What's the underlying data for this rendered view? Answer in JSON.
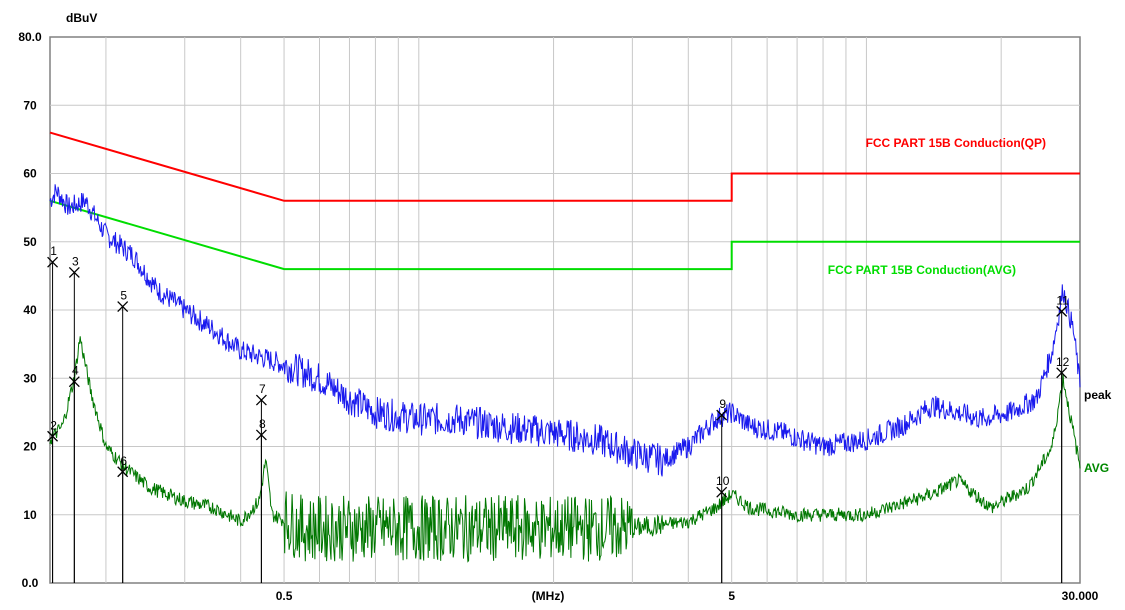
{
  "chart_data": {
    "type": "line",
    "title": "",
    "xlabel": "(MHz)",
    "ylabel": "dBuV",
    "x_scale": "log",
    "xlim": [
      0.15,
      30
    ],
    "ylim": [
      0,
      80
    ],
    "y_ticks": [
      {
        "value": 0,
        "label": "0.0"
      },
      {
        "value": 10,
        "label": "10"
      },
      {
        "value": 20,
        "label": "20"
      },
      {
        "value": 30,
        "label": "30"
      },
      {
        "value": 40,
        "label": "40"
      },
      {
        "value": 50,
        "label": "50"
      },
      {
        "value": 60,
        "label": "60"
      },
      {
        "value": 70,
        "label": "70"
      },
      {
        "value": 80,
        "label": "80.0"
      }
    ],
    "x_ticks": [
      {
        "value": 0.5,
        "label": "0.5"
      },
      {
        "value": 5,
        "label": "5"
      },
      {
        "value": 30,
        "label": "30.000"
      }
    ],
    "grid": true,
    "limit_lines": [
      {
        "name": "FCC PART 15B Conduction(QP)",
        "color": "#ff0000",
        "points": [
          [
            0.15,
            66
          ],
          [
            0.5,
            56
          ],
          [
            5,
            56
          ],
          [
            5,
            60
          ],
          [
            30,
            60
          ]
        ]
      },
      {
        "name": "FCC PART 15B Conduction(AVG)",
        "color": "#00dd00",
        "points": [
          [
            0.15,
            56
          ],
          [
            0.5,
            46
          ],
          [
            5,
            46
          ],
          [
            5,
            50
          ],
          [
            30,
            50
          ]
        ]
      }
    ],
    "series": [
      {
        "name": "peak",
        "color": "#1a1aee",
        "points": [
          [
            0.15,
            56
          ],
          [
            0.155,
            57.5
          ],
          [
            0.165,
            55
          ],
          [
            0.18,
            56
          ],
          [
            0.2,
            51
          ],
          [
            0.23,
            48
          ],
          [
            0.26,
            43
          ],
          [
            0.3,
            40
          ],
          [
            0.35,
            37
          ],
          [
            0.4,
            34
          ],
          [
            0.45,
            33
          ],
          [
            0.5,
            32
          ],
          [
            0.6,
            30
          ],
          [
            0.7,
            27
          ],
          [
            0.8,
            25
          ],
          [
            1.0,
            24
          ],
          [
            1.2,
            24
          ],
          [
            1.5,
            23
          ],
          [
            2.0,
            22
          ],
          [
            2.5,
            21
          ],
          [
            3.0,
            19
          ],
          [
            3.5,
            18
          ],
          [
            4.0,
            20
          ],
          [
            4.6,
            24
          ],
          [
            5.0,
            25
          ],
          [
            5.5,
            23
          ],
          [
            6.5,
            22
          ],
          [
            8.0,
            20
          ],
          [
            10,
            21
          ],
          [
            12,
            23
          ],
          [
            14,
            26
          ],
          [
            16,
            25
          ],
          [
            18,
            24
          ],
          [
            21,
            25
          ],
          [
            24,
            27
          ],
          [
            26,
            34
          ],
          [
            27.5,
            43
          ],
          [
            29,
            37
          ],
          [
            30,
            29
          ]
        ]
      },
      {
        "name": "AVG",
        "color": "#007700",
        "points": [
          [
            0.15,
            21
          ],
          [
            0.16,
            23
          ],
          [
            0.17,
            30
          ],
          [
            0.175,
            36
          ],
          [
            0.185,
            28
          ],
          [
            0.2,
            20
          ],
          [
            0.22,
            17
          ],
          [
            0.25,
            14
          ],
          [
            0.3,
            12
          ],
          [
            0.35,
            11
          ],
          [
            0.4,
            9
          ],
          [
            0.44,
            12
          ],
          [
            0.455,
            18
          ],
          [
            0.47,
            10
          ],
          [
            0.55,
            8
          ],
          [
            0.7,
            8
          ],
          [
            1.0,
            8
          ],
          [
            1.5,
            8
          ],
          [
            2.0,
            8
          ],
          [
            3.0,
            8
          ],
          [
            4.0,
            9
          ],
          [
            4.6,
            11
          ],
          [
            5.0,
            13
          ],
          [
            5.5,
            11
          ],
          [
            7.0,
            10
          ],
          [
            10,
            10
          ],
          [
            14,
            13
          ],
          [
            16,
            15
          ],
          [
            19,
            11
          ],
          [
            23,
            14
          ],
          [
            26,
            20
          ],
          [
            27.5,
            30
          ],
          [
            29,
            22
          ],
          [
            30,
            17
          ]
        ]
      }
    ],
    "markers": [
      {
        "label": "1",
        "x": 0.152,
        "y": 47.0
      },
      {
        "label": "2",
        "x": 0.152,
        "y": 21.5
      },
      {
        "label": "3",
        "x": 0.17,
        "y": 45.5
      },
      {
        "label": "4",
        "x": 0.17,
        "y": 29.5
      },
      {
        "label": "5",
        "x": 0.218,
        "y": 40.5
      },
      {
        "label": "6",
        "x": 0.218,
        "y": 16.3
      },
      {
        "label": "7",
        "x": 0.445,
        "y": 26.8
      },
      {
        "label": "8",
        "x": 0.445,
        "y": 21.7
      },
      {
        "label": "9",
        "x": 4.75,
        "y": 24.6
      },
      {
        "label": "10",
        "x": 4.75,
        "y": 13.3
      },
      {
        "label": "11",
        "x": 27.3,
        "y": 39.8
      },
      {
        "label": "12",
        "x": 27.3,
        "y": 30.8
      }
    ]
  }
}
